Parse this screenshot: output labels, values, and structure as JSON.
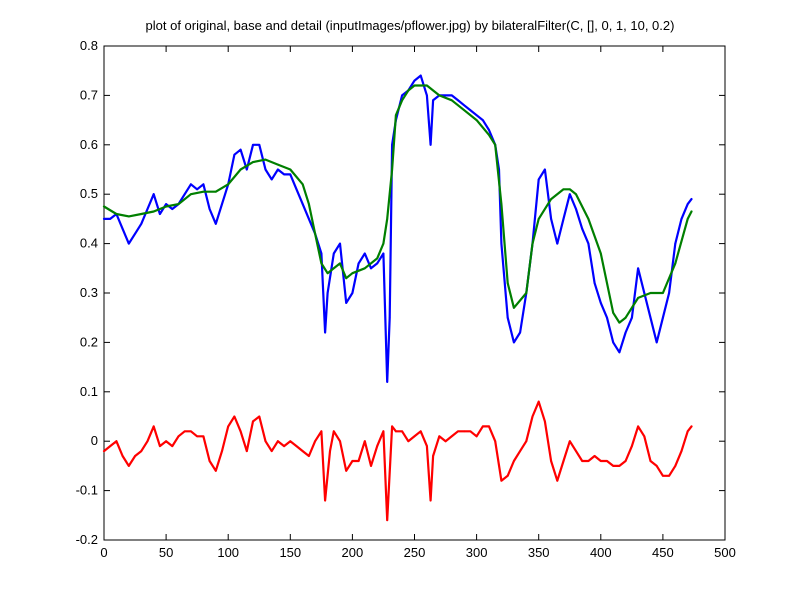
{
  "chart_data": {
    "type": "line",
    "title": "plot of original, base and detail (inputImages/pflower.jpg) by bilateralFilter(C, [], 0, 1, 10, 0.2)",
    "xlabel": "",
    "ylabel": "",
    "xlim": [
      0,
      500
    ],
    "ylim": [
      -0.2,
      0.8
    ],
    "xticks": [
      "0",
      "50",
      "100",
      "150",
      "200",
      "250",
      "300",
      "350",
      "400",
      "450",
      "500"
    ],
    "yticks": [
      "-0.2",
      "-0.1",
      "0",
      "0.1",
      "0.2",
      "0.3",
      "0.4",
      "0.5",
      "0.6",
      "0.7",
      "0.8"
    ],
    "grid": false,
    "legend": "none",
    "series": [
      {
        "color": "#0000ff",
        "x": [
          0,
          5,
          10,
          15,
          20,
          25,
          30,
          35,
          40,
          45,
          50,
          55,
          60,
          65,
          70,
          75,
          80,
          85,
          90,
          95,
          100,
          105,
          110,
          115,
          120,
          125,
          130,
          135,
          140,
          145,
          150,
          155,
          160,
          165,
          170,
          175,
          178,
          180,
          185,
          190,
          195,
          200,
          205,
          210,
          215,
          220,
          225,
          228,
          230,
          232,
          235,
          240,
          245,
          250,
          255,
          260,
          263,
          265,
          270,
          275,
          280,
          285,
          290,
          295,
          300,
          305,
          310,
          315,
          318,
          320,
          325,
          330,
          335,
          340,
          345,
          350,
          355,
          360,
          365,
          370,
          375,
          380,
          385,
          390,
          395,
          400,
          405,
          410,
          415,
          420,
          425,
          430,
          435,
          440,
          445,
          450,
          455,
          460,
          465,
          470,
          473
        ],
        "values": [
          0.45,
          0.45,
          0.46,
          0.43,
          0.4,
          0.42,
          0.44,
          0.47,
          0.5,
          0.46,
          0.48,
          0.47,
          0.48,
          0.5,
          0.52,
          0.51,
          0.52,
          0.47,
          0.44,
          0.48,
          0.52,
          0.58,
          0.59,
          0.55,
          0.6,
          0.6,
          0.55,
          0.53,
          0.55,
          0.54,
          0.54,
          0.51,
          0.48,
          0.45,
          0.42,
          0.38,
          0.22,
          0.3,
          0.38,
          0.4,
          0.28,
          0.3,
          0.36,
          0.38,
          0.35,
          0.36,
          0.38,
          0.12,
          0.25,
          0.6,
          0.65,
          0.7,
          0.71,
          0.73,
          0.74,
          0.7,
          0.6,
          0.69,
          0.7,
          0.7,
          0.7,
          0.69,
          0.68,
          0.67,
          0.66,
          0.65,
          0.63,
          0.6,
          0.55,
          0.4,
          0.25,
          0.2,
          0.22,
          0.3,
          0.4,
          0.53,
          0.55,
          0.45,
          0.4,
          0.45,
          0.5,
          0.47,
          0.43,
          0.4,
          0.32,
          0.28,
          0.25,
          0.2,
          0.18,
          0.22,
          0.25,
          0.35,
          0.3,
          0.25,
          0.2,
          0.25,
          0.3,
          0.4,
          0.45,
          0.48,
          0.49
        ]
      },
      {
        "color": "#007f00",
        "x": [
          0,
          10,
          20,
          30,
          40,
          50,
          60,
          70,
          80,
          90,
          100,
          110,
          120,
          130,
          140,
          150,
          160,
          165,
          170,
          175,
          180,
          185,
          190,
          195,
          200,
          210,
          220,
          225,
          228,
          232,
          235,
          240,
          245,
          250,
          260,
          270,
          280,
          290,
          300,
          310,
          315,
          320,
          325,
          330,
          340,
          345,
          350,
          360,
          370,
          375,
          380,
          390,
          400,
          410,
          415,
          420,
          430,
          440,
          450,
          460,
          470,
          473
        ],
        "values": [
          0.475,
          0.46,
          0.455,
          0.46,
          0.465,
          0.475,
          0.48,
          0.5,
          0.505,
          0.505,
          0.52,
          0.55,
          0.565,
          0.57,
          0.56,
          0.55,
          0.52,
          0.48,
          0.42,
          0.36,
          0.34,
          0.35,
          0.36,
          0.33,
          0.34,
          0.35,
          0.37,
          0.4,
          0.45,
          0.55,
          0.66,
          0.69,
          0.71,
          0.72,
          0.72,
          0.7,
          0.69,
          0.67,
          0.65,
          0.62,
          0.6,
          0.48,
          0.32,
          0.27,
          0.3,
          0.4,
          0.45,
          0.49,
          0.51,
          0.51,
          0.5,
          0.45,
          0.38,
          0.26,
          0.24,
          0.25,
          0.29,
          0.3,
          0.3,
          0.36,
          0.45,
          0.465
        ]
      },
      {
        "color": "#ff0000",
        "x": [
          0,
          5,
          10,
          15,
          20,
          25,
          30,
          35,
          40,
          45,
          50,
          55,
          60,
          65,
          70,
          75,
          80,
          85,
          90,
          95,
          100,
          105,
          110,
          115,
          120,
          125,
          130,
          135,
          140,
          145,
          150,
          155,
          160,
          165,
          170,
          175,
          178,
          182,
          185,
          190,
          195,
          200,
          205,
          210,
          215,
          220,
          225,
          228,
          232,
          235,
          240,
          245,
          250,
          255,
          260,
          263,
          265,
          270,
          275,
          280,
          285,
          290,
          295,
          300,
          305,
          310,
          315,
          320,
          325,
          330,
          335,
          340,
          345,
          350,
          355,
          360,
          365,
          370,
          375,
          380,
          385,
          390,
          395,
          400,
          405,
          410,
          415,
          420,
          425,
          430,
          435,
          440,
          445,
          450,
          455,
          460,
          465,
          470,
          473
        ],
        "values": [
          -0.02,
          -0.01,
          0.0,
          -0.03,
          -0.05,
          -0.03,
          -0.02,
          0.0,
          0.03,
          -0.01,
          0.0,
          -0.01,
          0.01,
          0.02,
          0.02,
          0.01,
          0.01,
          -0.04,
          -0.06,
          -0.02,
          0.03,
          0.05,
          0.02,
          -0.02,
          0.04,
          0.05,
          0.0,
          -0.02,
          0.0,
          -0.01,
          0.0,
          -0.01,
          -0.02,
          -0.03,
          0.0,
          0.02,
          -0.12,
          -0.02,
          0.02,
          0.0,
          -0.06,
          -0.04,
          -0.04,
          0.0,
          -0.05,
          -0.01,
          0.02,
          -0.16,
          0.03,
          0.02,
          0.02,
          0.0,
          0.01,
          0.02,
          -0.01,
          -0.12,
          -0.03,
          0.01,
          0.0,
          0.01,
          0.02,
          0.02,
          0.02,
          0.01,
          0.03,
          0.03,
          0.0,
          -0.08,
          -0.07,
          -0.04,
          -0.02,
          0.0,
          0.05,
          0.08,
          0.04,
          -0.04,
          -0.08,
          -0.04,
          0.0,
          -0.02,
          -0.04,
          -0.04,
          -0.03,
          -0.04,
          -0.04,
          -0.05,
          -0.05,
          -0.04,
          -0.01,
          0.03,
          0.01,
          -0.04,
          -0.05,
          -0.07,
          -0.07,
          -0.05,
          -0.02,
          0.02,
          0.03
        ]
      }
    ]
  }
}
